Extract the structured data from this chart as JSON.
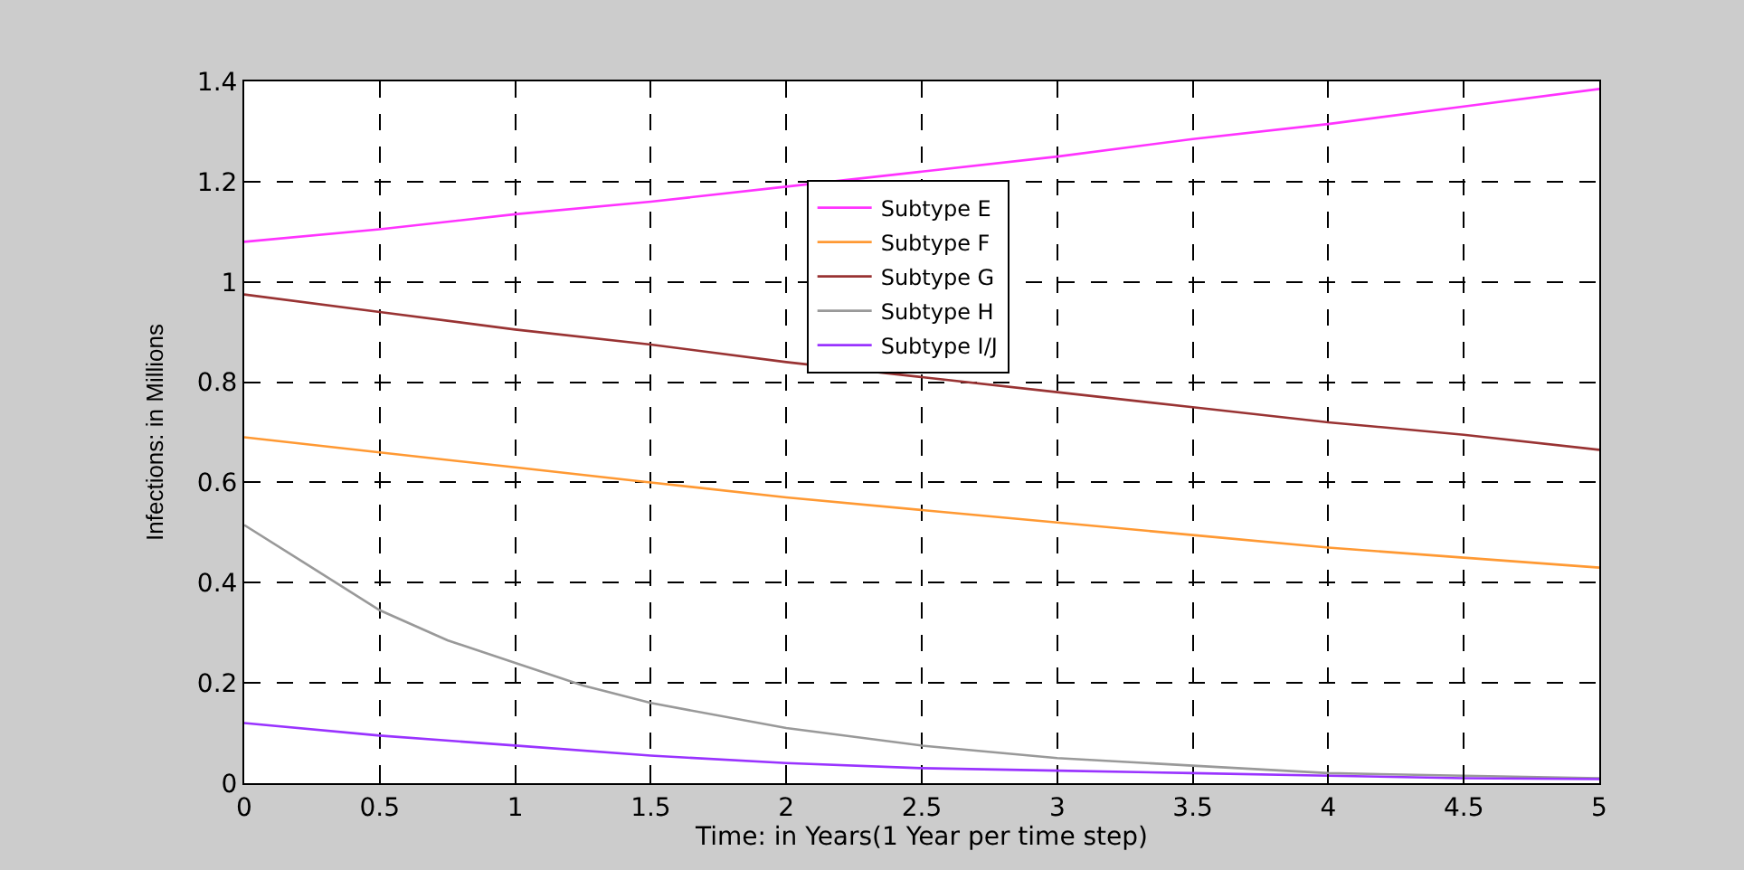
{
  "chart_data": {
    "type": "line",
    "xlabel": "Time: in Years(1 Year per time step)",
    "ylabel": "Infections: in Millions",
    "x": [
      0,
      0.5,
      1,
      1.5,
      2,
      2.5,
      3,
      3.5,
      4,
      4.5,
      5
    ],
    "series": [
      {
        "name": "Subtype E",
        "color": "#ff33ff",
        "values": [
          1.08,
          1.105,
          1.135,
          1.16,
          1.19,
          1.22,
          1.25,
          1.285,
          1.315,
          1.35,
          1.385
        ]
      },
      {
        "name": "Subtype F",
        "color": "#ff9933",
        "values": [
          0.69,
          0.66,
          0.63,
          0.6,
          0.57,
          0.545,
          0.52,
          0.495,
          0.47,
          0.45,
          0.43
        ]
      },
      {
        "name": "Subtype G",
        "color": "#993333",
        "values": [
          0.975,
          0.94,
          0.905,
          0.875,
          0.84,
          0.81,
          0.78,
          0.75,
          0.72,
          0.695,
          0.665
        ]
      },
      {
        "name": "Subtype H",
        "color": "#999999",
        "x": [
          0,
          0.25,
          0.5,
          0.75,
          1,
          1.25,
          1.5,
          2,
          2.5,
          3,
          3.5,
          4,
          4.5,
          5
        ],
        "values": [
          0.515,
          0.43,
          0.345,
          0.285,
          0.24,
          0.195,
          0.16,
          0.11,
          0.075,
          0.05,
          0.035,
          0.02,
          0.015,
          0.01
        ]
      },
      {
        "name": "Subtype I/J",
        "color": "#9933ff",
        "values": [
          0.12,
          0.095,
          0.075,
          0.055,
          0.04,
          0.03,
          0.025,
          0.02,
          0.015,
          0.01,
          0.008
        ]
      }
    ],
    "xlim": [
      0,
      5
    ],
    "xticks": [
      0,
      0.5,
      1,
      1.5,
      2,
      2.5,
      3,
      3.5,
      4,
      4.5,
      5
    ],
    "ylim": [
      0,
      1.4
    ],
    "yticks": [
      0,
      0.2,
      0.4,
      0.6,
      0.8,
      1,
      1.2,
      1.4
    ],
    "grid": true,
    "legend": "top",
    "marker": "none",
    "line_style": "solid"
  }
}
